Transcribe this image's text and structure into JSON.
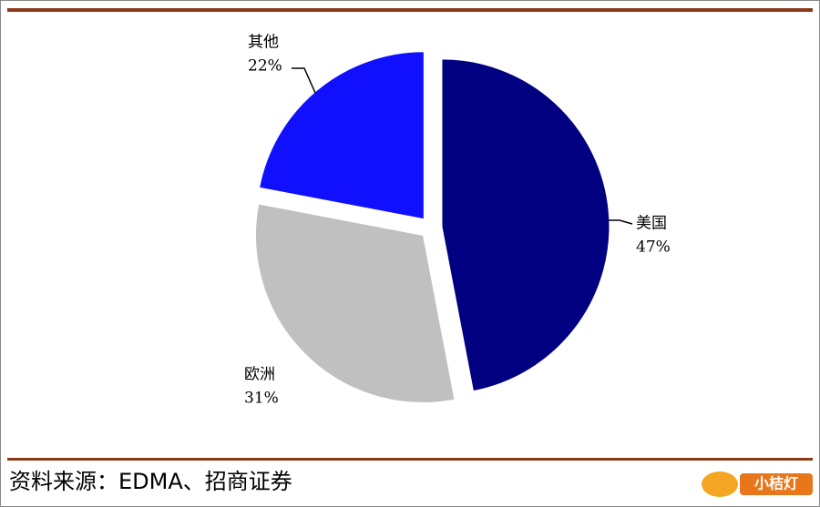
{
  "chart_data": {
    "type": "pie",
    "categories": [
      "美国",
      "欧洲",
      "其他"
    ],
    "values": [
      47,
      31,
      22
    ],
    "value_labels": [
      "47%",
      "31%",
      "22%"
    ],
    "colors": [
      "#000080",
      "#c0c0c0",
      "#1010ff"
    ]
  },
  "source": "资料来源：EDMA、招商证券",
  "watermark": "小桔灯"
}
